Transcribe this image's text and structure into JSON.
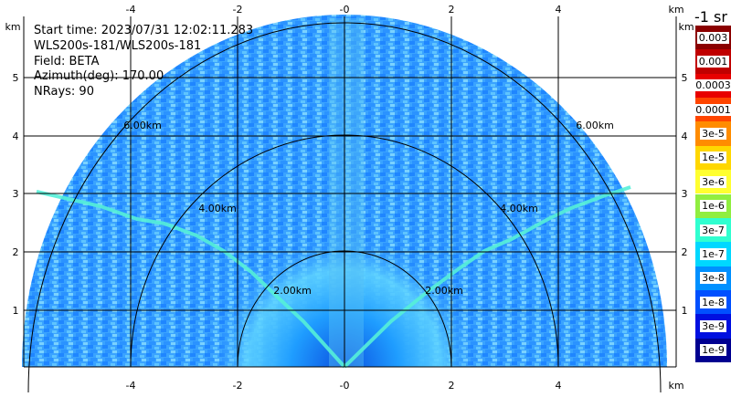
{
  "info": {
    "start_time": "Start time: 2023/07/31 12:02:11.283",
    "instrument": "WLS200s-181/WLS200s-181",
    "field": "Field: BETA",
    "azimuth": "Azimuth(deg): 170.00",
    "nrays": "NRays: 90"
  },
  "axes": {
    "unit": "km",
    "x_ticks": [
      "-4",
      "-2",
      "-0",
      "2",
      "4"
    ],
    "y_ticks": [
      "1",
      "2",
      "3",
      "4",
      "5"
    ],
    "range_rings": [
      "2.00km",
      "4.00km",
      "6.00km"
    ]
  },
  "colorbar": {
    "title": "-1 sr",
    "labels": [
      "0.003",
      "0.001",
      "0.0003",
      "0.0001",
      "3e-5",
      "1e-5",
      "3e-6",
      "1e-6",
      "3e-7",
      "1e-7",
      "3e-8",
      "1e-8",
      "3e-9",
      "1e-9"
    ],
    "colors": [
      "#8b0000",
      "#c00000",
      "#e80000",
      "#ff4500",
      "#ff8c00",
      "#ffd700",
      "#ffff30",
      "#90ee40",
      "#30ffd0",
      "#00d8ff",
      "#0090ff",
      "#0050ff",
      "#0010e0",
      "#000090"
    ]
  }
}
